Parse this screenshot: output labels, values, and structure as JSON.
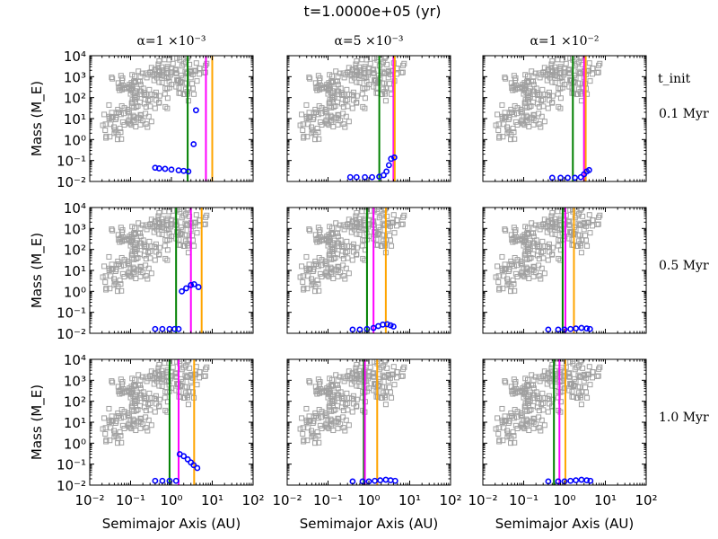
{
  "figure_title": "t=1.0000e+05 (yr)",
  "column_titles": [
    "α=1 ×10⁻³",
    "α=5 ×10⁻³",
    "α=1 ×10⁻²"
  ],
  "row_header": "t_init",
  "row_labels": [
    "0.1 Myr",
    "0.5 Myr",
    "1.0 Myr"
  ],
  "ylabel": "Mass (M_E)",
  "xlabel": "Semimajor Axis (AU)",
  "x_tick_labels": [
    "10⁻²",
    "10⁻¹",
    "10⁰",
    "10¹",
    "10²"
  ],
  "y_tick_labels": [
    "10⁻²",
    "10⁻¹",
    "10⁰",
    "10¹",
    "10²",
    "10³",
    "10⁴"
  ],
  "colors": {
    "background_points": "#a0a0a0",
    "planetesimals": "#0000ff",
    "line1": "#008000",
    "line2": "#ff00ff",
    "line3": "#ffa500"
  },
  "chart_data": {
    "type": "scatter",
    "xscale": "log",
    "yscale": "log",
    "xlim": [
      0.01,
      100
    ],
    "ylim": [
      0.01,
      10000
    ],
    "background_sample": [
      {
        "a": 0.05,
        "m": 500
      },
      {
        "a": 0.08,
        "m": 300
      },
      {
        "a": 0.1,
        "m": 150
      },
      {
        "a": 0.12,
        "m": 600
      },
      {
        "a": 0.18,
        "m": 200
      },
      {
        "a": 0.25,
        "m": 900
      },
      {
        "a": 0.3,
        "m": 80
      },
      {
        "a": 0.4,
        "m": 2000
      },
      {
        "a": 0.6,
        "m": 1200
      },
      {
        "a": 0.8,
        "m": 3000
      },
      {
        "a": 1.0,
        "m": 1500
      },
      {
        "a": 1.5,
        "m": 700
      },
      {
        "a": 2.0,
        "m": 4000
      },
      {
        "a": 3.0,
        "m": 900
      },
      {
        "a": 5.0,
        "m": 2500
      },
      {
        "a": 0.03,
        "m": 10
      },
      {
        "a": 0.05,
        "m": 20
      },
      {
        "a": 0.07,
        "m": 5
      },
      {
        "a": 0.1,
        "m": 12
      },
      {
        "a": 0.2,
        "m": 8
      },
      {
        "a": 0.04,
        "m": 2
      },
      {
        "a": 0.15,
        "m": 40
      },
      {
        "a": 0.5,
        "m": 60
      },
      {
        "a": 2.5,
        "m": 150
      },
      {
        "a": 0.9,
        "m": 300
      }
    ],
    "panels": [
      {
        "row": 0,
        "col": 0,
        "vlines": [
          2.5,
          7.0,
          10.0
        ],
        "points": [
          {
            "a": 0.4,
            "m": 0.045
          },
          {
            "a": 0.5,
            "m": 0.042
          },
          {
            "a": 0.7,
            "m": 0.04
          },
          {
            "a": 1.0,
            "m": 0.037
          },
          {
            "a": 1.5,
            "m": 0.034
          },
          {
            "a": 2.0,
            "m": 0.032
          },
          {
            "a": 2.6,
            "m": 0.03
          },
          {
            "a": 3.5,
            "m": 0.6
          },
          {
            "a": 4.0,
            "m": 25
          }
        ]
      },
      {
        "row": 0,
        "col": 1,
        "vlines": [
          1.8,
          4.0,
          4.3
        ],
        "points": [
          {
            "a": 0.35,
            "m": 0.016
          },
          {
            "a": 0.5,
            "m": 0.016
          },
          {
            "a": 0.8,
            "m": 0.016
          },
          {
            "a": 1.2,
            "m": 0.016
          },
          {
            "a": 1.8,
            "m": 0.017
          },
          {
            "a": 2.3,
            "m": 0.02
          },
          {
            "a": 2.7,
            "m": 0.03
          },
          {
            "a": 3.1,
            "m": 0.06
          },
          {
            "a": 3.5,
            "m": 0.12
          },
          {
            "a": 4.2,
            "m": 0.14
          }
        ]
      },
      {
        "row": 0,
        "col": 2,
        "vlines": [
          1.6,
          3.0,
          3.3
        ],
        "points": [
          {
            "a": 0.5,
            "m": 0.015
          },
          {
            "a": 0.8,
            "m": 0.015
          },
          {
            "a": 1.2,
            "m": 0.015
          },
          {
            "a": 1.8,
            "m": 0.015
          },
          {
            "a": 2.5,
            "m": 0.016
          },
          {
            "a": 3.0,
            "m": 0.022
          },
          {
            "a": 3.5,
            "m": 0.03
          },
          {
            "a": 4.0,
            "m": 0.035
          }
        ]
      },
      {
        "row": 1,
        "col": 0,
        "vlines": [
          1.3,
          3.0,
          5.5
        ],
        "points": [
          {
            "a": 0.4,
            "m": 0.016
          },
          {
            "a": 0.6,
            "m": 0.016
          },
          {
            "a": 0.9,
            "m": 0.016
          },
          {
            "a": 1.2,
            "m": 0.016
          },
          {
            "a": 1.5,
            "m": 0.016
          },
          {
            "a": 1.8,
            "m": 1.0
          },
          {
            "a": 2.3,
            "m": 1.4
          },
          {
            "a": 3.0,
            "m": 2.0
          },
          {
            "a": 3.6,
            "m": 2.2
          },
          {
            "a": 4.6,
            "m": 1.6
          }
        ]
      },
      {
        "row": 1,
        "col": 1,
        "vlines": [
          0.9,
          1.3,
          2.6
        ],
        "points": [
          {
            "a": 0.4,
            "m": 0.015
          },
          {
            "a": 0.6,
            "m": 0.015
          },
          {
            "a": 0.9,
            "m": 0.016
          },
          {
            "a": 1.3,
            "m": 0.018
          },
          {
            "a": 1.7,
            "m": 0.022
          },
          {
            "a": 2.2,
            "m": 0.026
          },
          {
            "a": 2.8,
            "m": 0.027
          },
          {
            "a": 3.4,
            "m": 0.024
          },
          {
            "a": 4.0,
            "m": 0.021
          }
        ]
      },
      {
        "row": 1,
        "col": 2,
        "vlines": [
          0.9,
          1.05,
          1.7
        ],
        "points": [
          {
            "a": 0.4,
            "m": 0.015
          },
          {
            "a": 0.7,
            "m": 0.015
          },
          {
            "a": 1.0,
            "m": 0.015
          },
          {
            "a": 1.4,
            "m": 0.016
          },
          {
            "a": 1.9,
            "m": 0.017
          },
          {
            "a": 2.6,
            "m": 0.018
          },
          {
            "a": 3.5,
            "m": 0.017
          },
          {
            "a": 4.2,
            "m": 0.016
          }
        ]
      },
      {
        "row": 2,
        "col": 0,
        "vlines": [
          0.9,
          1.5,
          3.6
        ],
        "points": [
          {
            "a": 0.4,
            "m": 0.016
          },
          {
            "a": 0.6,
            "m": 0.016
          },
          {
            "a": 0.9,
            "m": 0.016
          },
          {
            "a": 1.3,
            "m": 0.016
          },
          {
            "a": 1.6,
            "m": 0.3
          },
          {
            "a": 2.0,
            "m": 0.24
          },
          {
            "a": 2.5,
            "m": 0.17
          },
          {
            "a": 3.0,
            "m": 0.12
          },
          {
            "a": 3.5,
            "m": 0.09
          },
          {
            "a": 4.3,
            "m": 0.065
          }
        ]
      },
      {
        "row": 2,
        "col": 1,
        "vlines": [
          0.75,
          0.8,
          1.6
        ],
        "points": [
          {
            "a": 0.4,
            "m": 0.015
          },
          {
            "a": 0.7,
            "m": 0.015
          },
          {
            "a": 1.0,
            "m": 0.015
          },
          {
            "a": 1.4,
            "m": 0.016
          },
          {
            "a": 1.9,
            "m": 0.017
          },
          {
            "a": 2.6,
            "m": 0.018
          },
          {
            "a": 3.4,
            "m": 0.017
          },
          {
            "a": 4.4,
            "m": 0.016
          }
        ]
      },
      {
        "row": 2,
        "col": 2,
        "vlines": [
          0.55,
          0.75,
          1.05
        ],
        "points": [
          {
            "a": 0.4,
            "m": 0.015
          },
          {
            "a": 0.7,
            "m": 0.015
          },
          {
            "a": 1.0,
            "m": 0.015
          },
          {
            "a": 1.4,
            "m": 0.016
          },
          {
            "a": 1.9,
            "m": 0.017
          },
          {
            "a": 2.6,
            "m": 0.018
          },
          {
            "a": 3.5,
            "m": 0.017
          },
          {
            "a": 4.3,
            "m": 0.016
          }
        ]
      }
    ]
  }
}
